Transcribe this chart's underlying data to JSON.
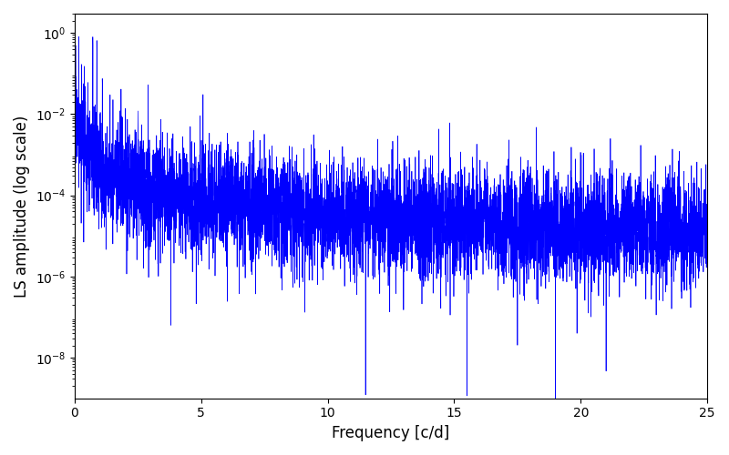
{
  "title": "",
  "xlabel": "Frequency [c/d]",
  "ylabel": "LS amplitude (log scale)",
  "xlim": [
    0,
    25
  ],
  "ylim_log": [
    1e-09,
    3.0
  ],
  "yticks": [
    1e-08,
    1e-06,
    0.0001,
    0.01,
    1.0
  ],
  "line_color": "#0000ff",
  "line_width": 0.5,
  "background_color": "#ffffff",
  "xfreq_max": 25.0,
  "n_points": 6000,
  "seed": 17
}
